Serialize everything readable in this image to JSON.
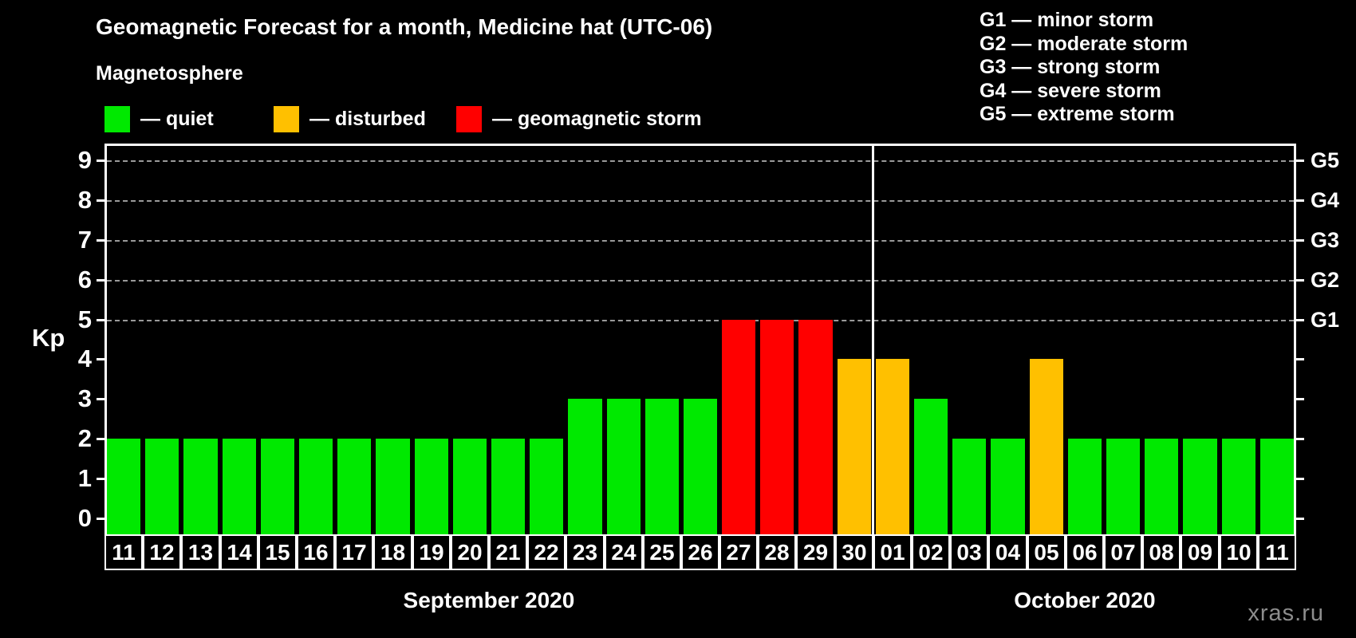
{
  "title": "Geomagnetic Forecast for a month, Medicine hat (UTC-06)",
  "subtitle": "Magnetosphere",
  "legend": {
    "items": [
      {
        "status": "quiet",
        "label": "— quiet"
      },
      {
        "status": "disturbed",
        "label": "— disturbed"
      },
      {
        "status": "storm",
        "label": "— geomagnetic storm"
      }
    ]
  },
  "g_legend": [
    "G1 — minor storm",
    "G2 — moderate storm",
    "G3 — strong storm",
    "G4 — severe storm",
    "G5 — extreme storm"
  ],
  "watermark": "xras.ru",
  "chart_data": {
    "type": "bar",
    "title": "Geomagnetic Forecast for a month, Medicine hat (UTC-06)",
    "ylabel": "Kp",
    "ylim": [
      0,
      9
    ],
    "yticks": [
      0,
      1,
      2,
      3,
      4,
      5,
      6,
      7,
      8,
      9
    ],
    "gridlines_at": [
      5,
      6,
      7,
      8,
      9
    ],
    "grid": "dashed horizontal at storm levels only",
    "legend_position": "top",
    "right_axis_labels": {
      "5": "G1",
      "6": "G2",
      "7": "G3",
      "8": "G4",
      "9": "G5"
    },
    "status_colors": {
      "quiet": "#00e900",
      "disturbed": "#ffc000",
      "storm": "#ff0000"
    },
    "months": [
      {
        "label": "September 2020",
        "points": [
          {
            "day": "11",
            "kp": 2,
            "status": "quiet"
          },
          {
            "day": "12",
            "kp": 2,
            "status": "quiet"
          },
          {
            "day": "13",
            "kp": 2,
            "status": "quiet"
          },
          {
            "day": "14",
            "kp": 2,
            "status": "quiet"
          },
          {
            "day": "15",
            "kp": 2,
            "status": "quiet"
          },
          {
            "day": "16",
            "kp": 2,
            "status": "quiet"
          },
          {
            "day": "17",
            "kp": 2,
            "status": "quiet"
          },
          {
            "day": "18",
            "kp": 2,
            "status": "quiet"
          },
          {
            "day": "19",
            "kp": 2,
            "status": "quiet"
          },
          {
            "day": "20",
            "kp": 2,
            "status": "quiet"
          },
          {
            "day": "21",
            "kp": 2,
            "status": "quiet"
          },
          {
            "day": "22",
            "kp": 2,
            "status": "quiet"
          },
          {
            "day": "23",
            "kp": 3,
            "status": "quiet"
          },
          {
            "day": "24",
            "kp": 3,
            "status": "quiet"
          },
          {
            "day": "25",
            "kp": 3,
            "status": "quiet"
          },
          {
            "day": "26",
            "kp": 3,
            "status": "quiet"
          },
          {
            "day": "27",
            "kp": 5,
            "status": "storm"
          },
          {
            "day": "28",
            "kp": 5,
            "status": "storm"
          },
          {
            "day": "29",
            "kp": 5,
            "status": "storm"
          },
          {
            "day": "30",
            "kp": 4,
            "status": "disturbed"
          }
        ]
      },
      {
        "label": "October 2020",
        "points": [
          {
            "day": "01",
            "kp": 4,
            "status": "disturbed"
          },
          {
            "day": "02",
            "kp": 3,
            "status": "quiet"
          },
          {
            "day": "03",
            "kp": 2,
            "status": "quiet"
          },
          {
            "day": "04",
            "kp": 2,
            "status": "quiet"
          },
          {
            "day": "05",
            "kp": 4,
            "status": "disturbed"
          },
          {
            "day": "06",
            "kp": 2,
            "status": "quiet"
          },
          {
            "day": "07",
            "kp": 2,
            "status": "quiet"
          },
          {
            "day": "08",
            "kp": 2,
            "status": "quiet"
          },
          {
            "day": "09",
            "kp": 2,
            "status": "quiet"
          },
          {
            "day": "10",
            "kp": 2,
            "status": "quiet"
          },
          {
            "day": "11",
            "kp": 2,
            "status": "quiet"
          }
        ]
      }
    ]
  }
}
